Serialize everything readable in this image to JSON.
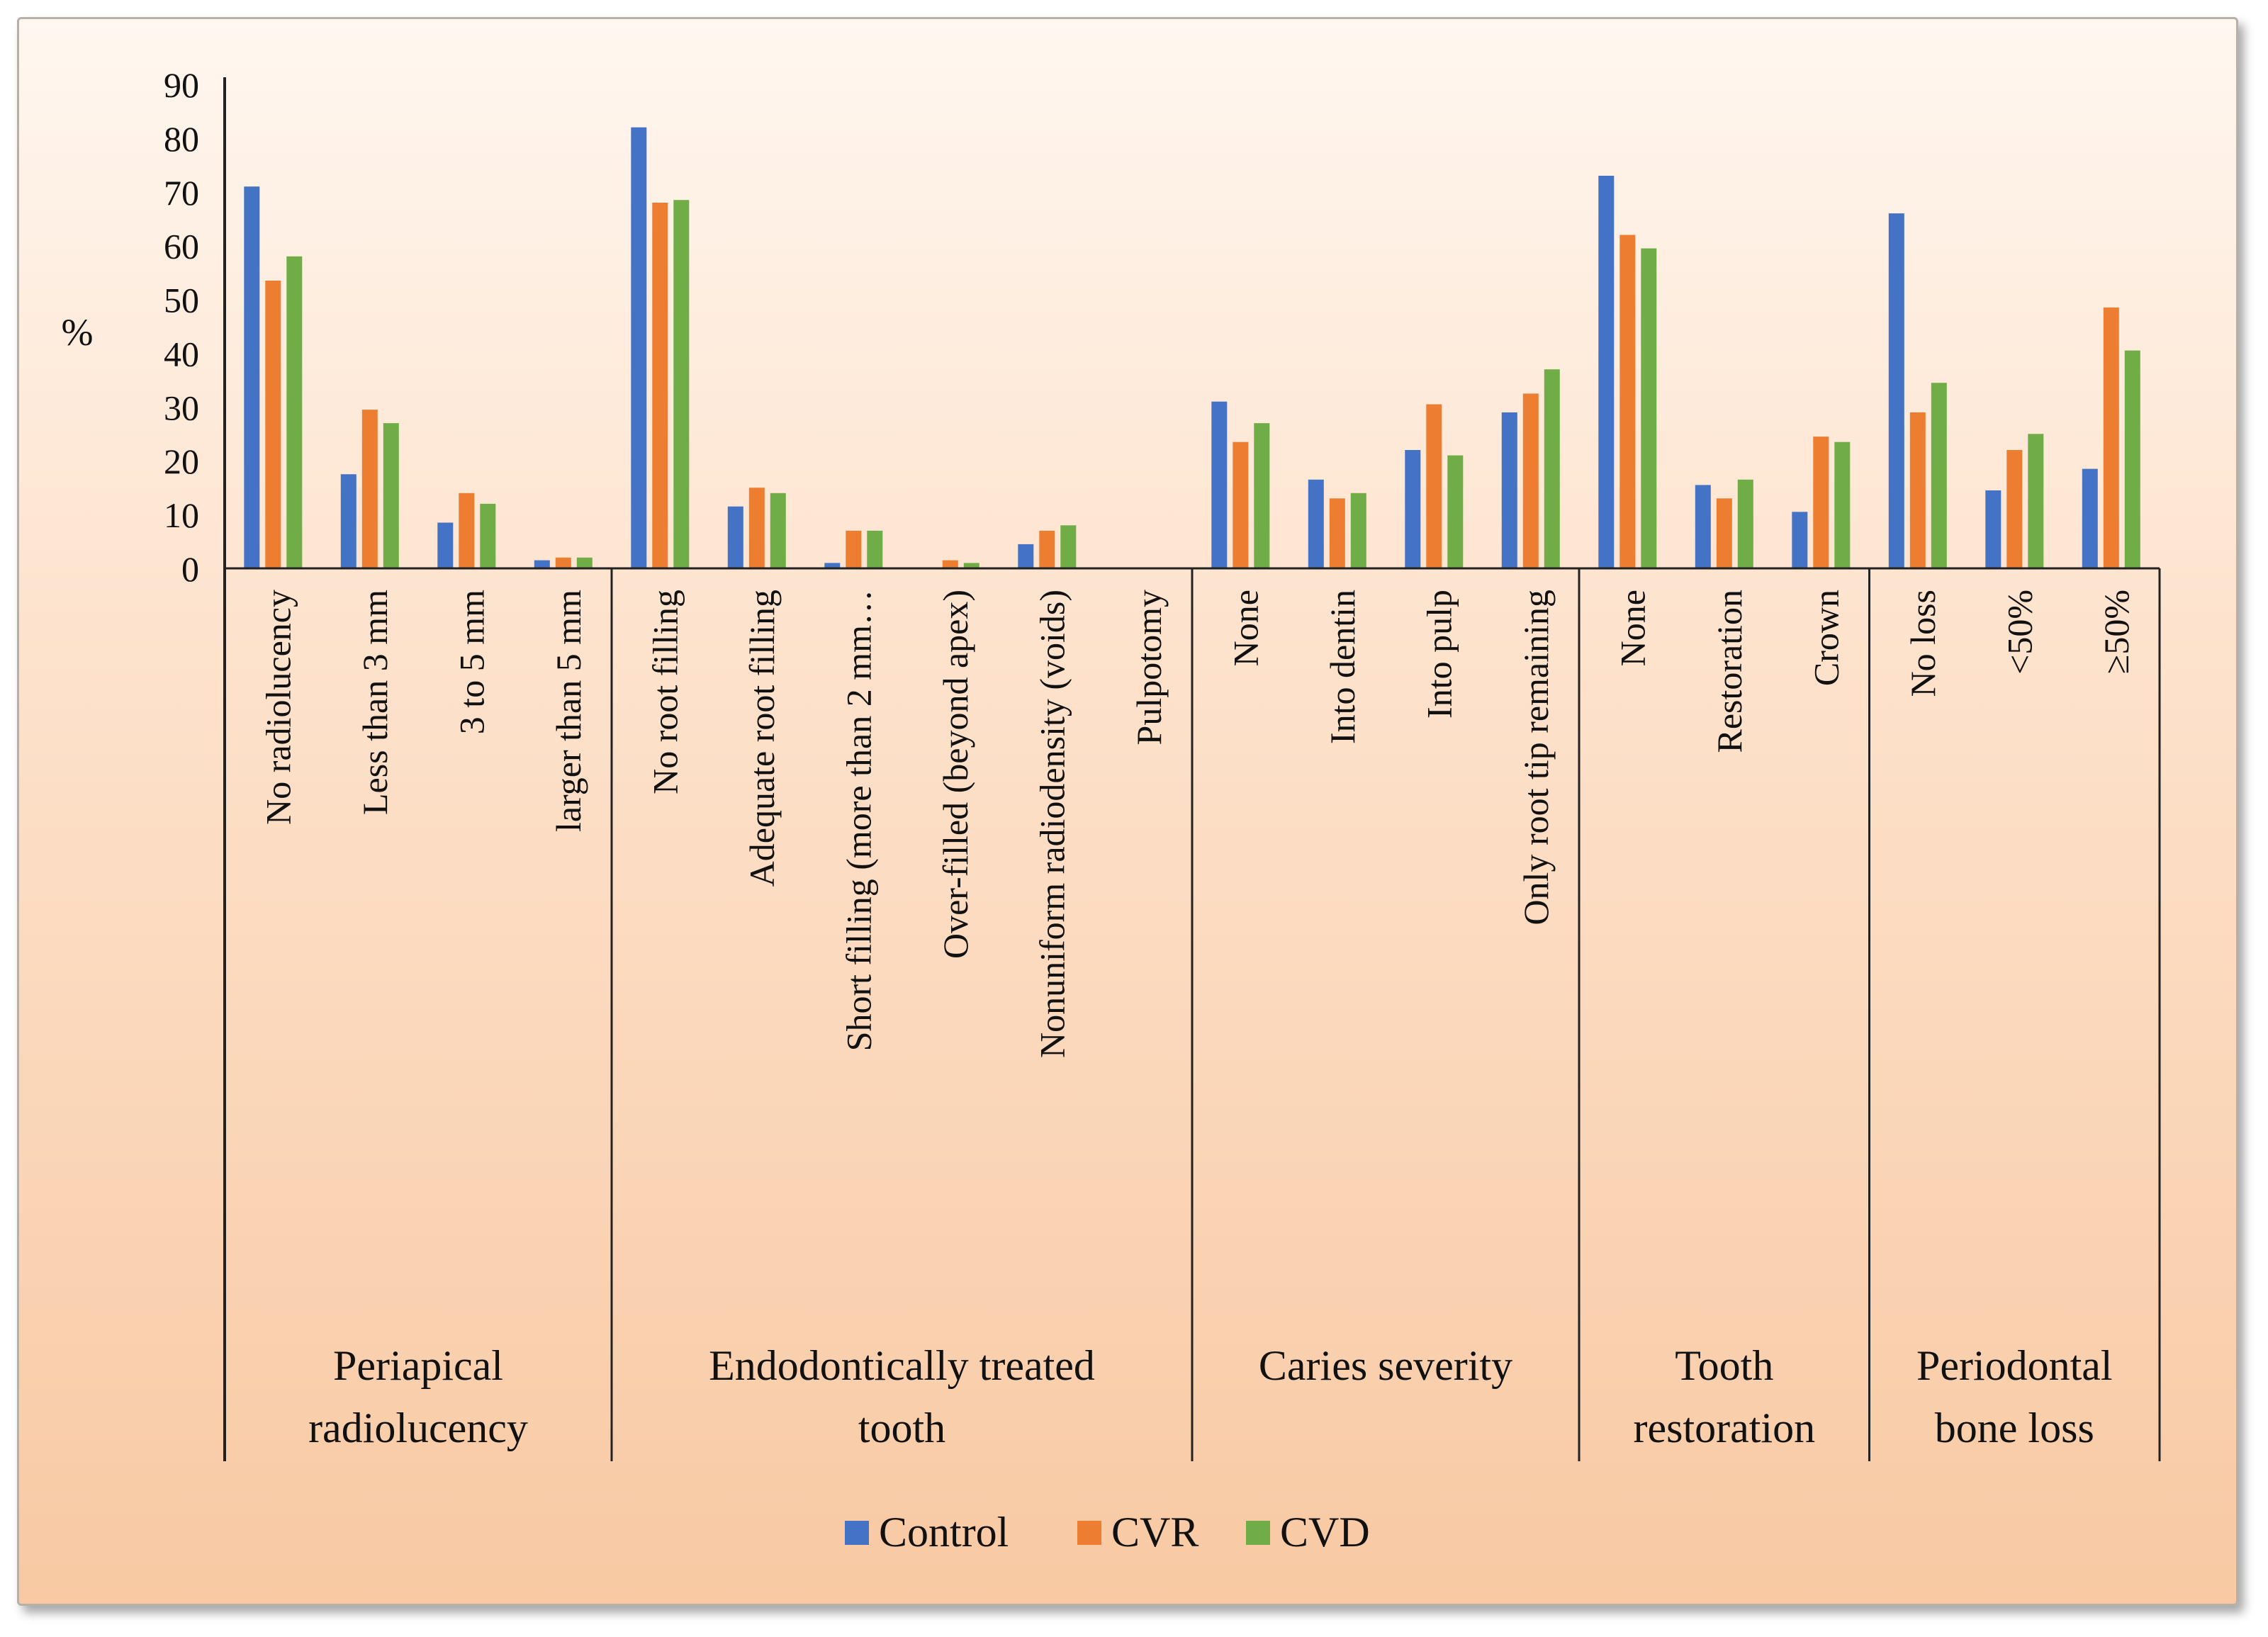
{
  "chart_data": {
    "type": "bar",
    "title": "",
    "ylabel": "%",
    "xlabel": "",
    "ylim": [
      0,
      90
    ],
    "yticks": [
      "0",
      "10",
      "20",
      "30",
      "40",
      "50",
      "60",
      "70",
      "80",
      "90"
    ],
    "groups": [
      {
        "label": "Periapical radiolucency",
        "label_lines": [
          "Periapical",
          "radiolucency"
        ],
        "categories": [
          "No radiolucency",
          "Less than 3 mm",
          "3 to 5 mm",
          "larger than 5 mm"
        ]
      },
      {
        "label": "Endodontically treated tooth",
        "label_lines": [
          "Endodontically treated",
          "tooth"
        ],
        "categories": [
          "No root filling",
          "Adequate root filling",
          "Short filling (more than 2 mm…",
          "Over-filled (beyond apex)",
          "Nonuniform radiodensity (voids)",
          "Pulpotomy"
        ]
      },
      {
        "label": "Caries severity",
        "label_lines": [
          "Caries severity"
        ],
        "categories": [
          "None",
          "Into dentin",
          "Into pulp",
          "Only root tip remaining"
        ]
      },
      {
        "label": "Tooth restoration",
        "label_lines": [
          "Tooth",
          "restoration"
        ],
        "categories": [
          "None",
          "Restoration",
          "Crown"
        ]
      },
      {
        "label": "Periodontal bone loss",
        "label_lines": [
          "Periodontal",
          "bone loss"
        ],
        "categories": [
          "No loss",
          "<50%",
          "≥50%"
        ]
      }
    ],
    "series": [
      {
        "name": "Control",
        "color": "#4472c4",
        "values": [
          71,
          17.5,
          8.5,
          1.5,
          82,
          11.5,
          1,
          0,
          4.5,
          0,
          31,
          16.5,
          22,
          29,
          73,
          15.5,
          10.5,
          66,
          14.5,
          18.5
        ]
      },
      {
        "name": "CVR",
        "color": "#ed7d31",
        "values": [
          53.5,
          29.5,
          14,
          2,
          68,
          15,
          7,
          1.5,
          7,
          0,
          23.5,
          13,
          30.5,
          32.5,
          62,
          13,
          24.5,
          29,
          22,
          48.5
        ]
      },
      {
        "name": "CVD",
        "color": "#70ad47",
        "values": [
          58,
          27,
          12,
          2,
          68.5,
          14,
          7,
          1,
          8,
          0,
          27,
          14,
          21,
          37,
          59.5,
          16.5,
          23.5,
          34.5,
          25,
          40.5
        ]
      }
    ],
    "legend": {
      "position": "bottom",
      "entries": [
        "Control",
        "CVR",
        "CVD"
      ]
    }
  }
}
